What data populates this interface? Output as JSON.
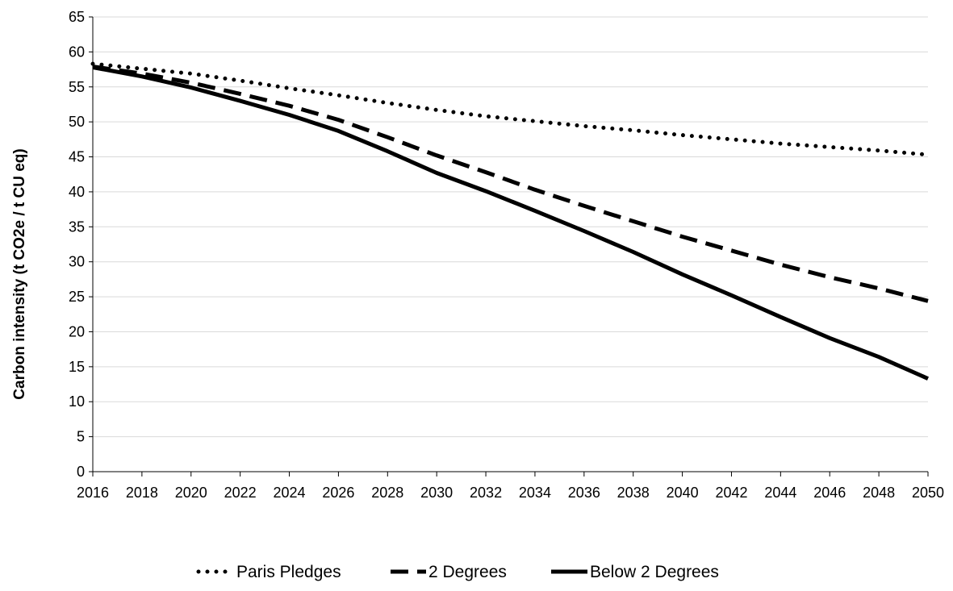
{
  "chart_data": {
    "type": "line",
    "title": "",
    "xlabel": "",
    "ylabel": "Carbon intensity (t CO2e / t CU eq)",
    "ylim": [
      0,
      65
    ],
    "ytick_step": 5,
    "x_ticks": [
      "2016",
      "2018",
      "2020",
      "2022",
      "2024",
      "2026",
      "2028",
      "2030",
      "2032",
      "2034",
      "2036",
      "2038",
      "2040",
      "2042",
      "2044",
      "2046",
      "2048",
      "2050"
    ],
    "xlim": [
      2016,
      2050
    ],
    "grid": "horizontal",
    "legend_position": "bottom",
    "line_color": "#000000",
    "series": [
      {
        "name": "Paris Pledges",
        "style": "dotted",
        "x": [
          2016,
          2018,
          2020,
          2022,
          2024,
          2026,
          2028,
          2030,
          2032,
          2034,
          2036,
          2038,
          2040,
          2042,
          2044,
          2046,
          2048,
          2050
        ],
        "y": [
          58.3,
          57.6,
          56.9,
          55.9,
          54.8,
          53.8,
          52.7,
          51.7,
          50.8,
          50.1,
          49.4,
          48.8,
          48.1,
          47.5,
          46.9,
          46.4,
          45.9,
          45.3
        ]
      },
      {
        "name": "2 Degrees",
        "style": "dashed",
        "x": [
          2016,
          2018,
          2020,
          2022,
          2024,
          2026,
          2028,
          2030,
          2032,
          2034,
          2036,
          2038,
          2040,
          2042,
          2044,
          2046,
          2048,
          2050
        ],
        "y": [
          57.9,
          56.9,
          55.6,
          54.0,
          52.3,
          50.3,
          47.8,
          45.2,
          42.8,
          40.3,
          38.0,
          35.8,
          33.6,
          31.6,
          29.6,
          27.8,
          26.2,
          24.4
        ]
      },
      {
        "name": "Below 2 Degrees",
        "style": "solid",
        "x": [
          2016,
          2018,
          2020,
          2022,
          2024,
          2026,
          2028,
          2030,
          2032,
          2034,
          2036,
          2038,
          2040,
          2042,
          2044,
          2046,
          2048,
          2050
        ],
        "y": [
          57.8,
          56.5,
          54.9,
          53.0,
          51.0,
          48.7,
          45.8,
          42.7,
          40.1,
          37.3,
          34.4,
          31.4,
          28.2,
          25.2,
          22.1,
          19.1,
          16.4,
          13.3
        ]
      }
    ]
  }
}
